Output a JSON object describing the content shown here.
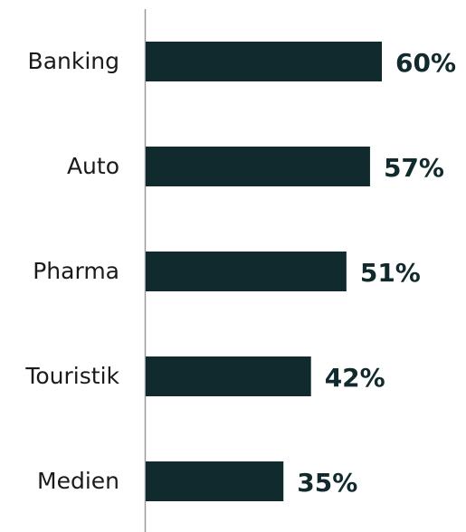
{
  "chart_data": {
    "type": "bar",
    "orientation": "horizontal",
    "categories": [
      "Banking",
      "Auto",
      "Pharma",
      "Touristik",
      "Medien"
    ],
    "values": [
      60,
      57,
      51,
      42,
      35
    ],
    "value_labels": [
      "60%",
      "57%",
      "51%",
      "42%",
      "35%"
    ],
    "color": "#102a2e",
    "xlim": [
      0,
      80
    ]
  }
}
